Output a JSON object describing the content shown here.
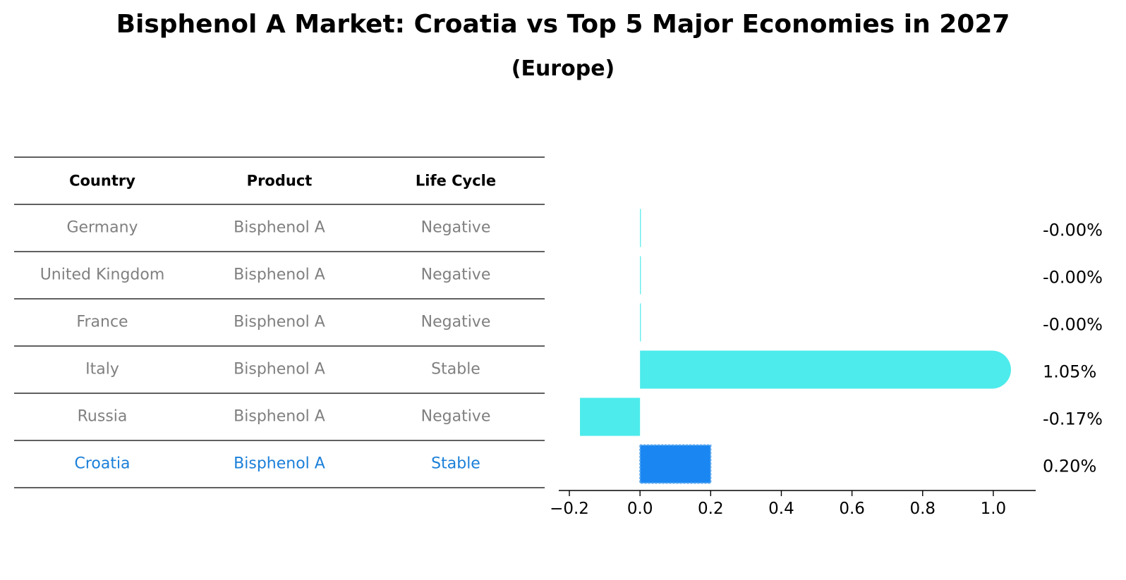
{
  "header": {
    "title": "Bisphenol A Market: Croatia vs Top 5 Major Economies in 2027",
    "subtitle": "(Europe)"
  },
  "table": {
    "columns": [
      "Country",
      "Product",
      "Life Cycle"
    ],
    "rows": [
      {
        "country": "Germany",
        "product": "Bisphenol A",
        "life_cycle": "Negative",
        "highlight": false
      },
      {
        "country": "United Kingdom",
        "product": "Bisphenol A",
        "life_cycle": "Negative",
        "highlight": false
      },
      {
        "country": "France",
        "product": "Bisphenol A",
        "life_cycle": "Negative",
        "highlight": false
      },
      {
        "country": "Italy",
        "product": "Bisphenol A",
        "life_cycle": "Stable",
        "highlight": false
      },
      {
        "country": "Russia",
        "product": "Bisphenol A",
        "life_cycle": "Negative",
        "highlight": false
      },
      {
        "country": "Croatia",
        "product": "Bisphenol A",
        "life_cycle": "Stable",
        "highlight": true
      }
    ]
  },
  "chart_data": {
    "type": "bar",
    "orientation": "horizontal",
    "categories": [
      "Germany",
      "United Kingdom",
      "France",
      "Italy",
      "Russia",
      "Croatia"
    ],
    "values": [
      -0.0,
      -0.0,
      -0.0,
      1.05,
      -0.17,
      0.2
    ],
    "value_labels": [
      "-0.00%",
      "-0.00%",
      "-0.00%",
      "1.05%",
      "-0.17%",
      "0.20%"
    ],
    "xlim": [
      -0.23,
      1.12
    ],
    "xticks": [
      -0.2,
      0.0,
      0.2,
      0.4,
      0.6,
      0.8,
      1.0
    ],
    "xtick_labels": [
      "−0.2",
      "0.0",
      "0.2",
      "0.4",
      "0.6",
      "0.8",
      "1.0"
    ],
    "grid": false,
    "colors": {
      "bar": "#4DEBEB",
      "highlight_bar": "#1A86F2",
      "highlight_text": "#1A7FD9",
      "muted_text": "#808080"
    }
  }
}
